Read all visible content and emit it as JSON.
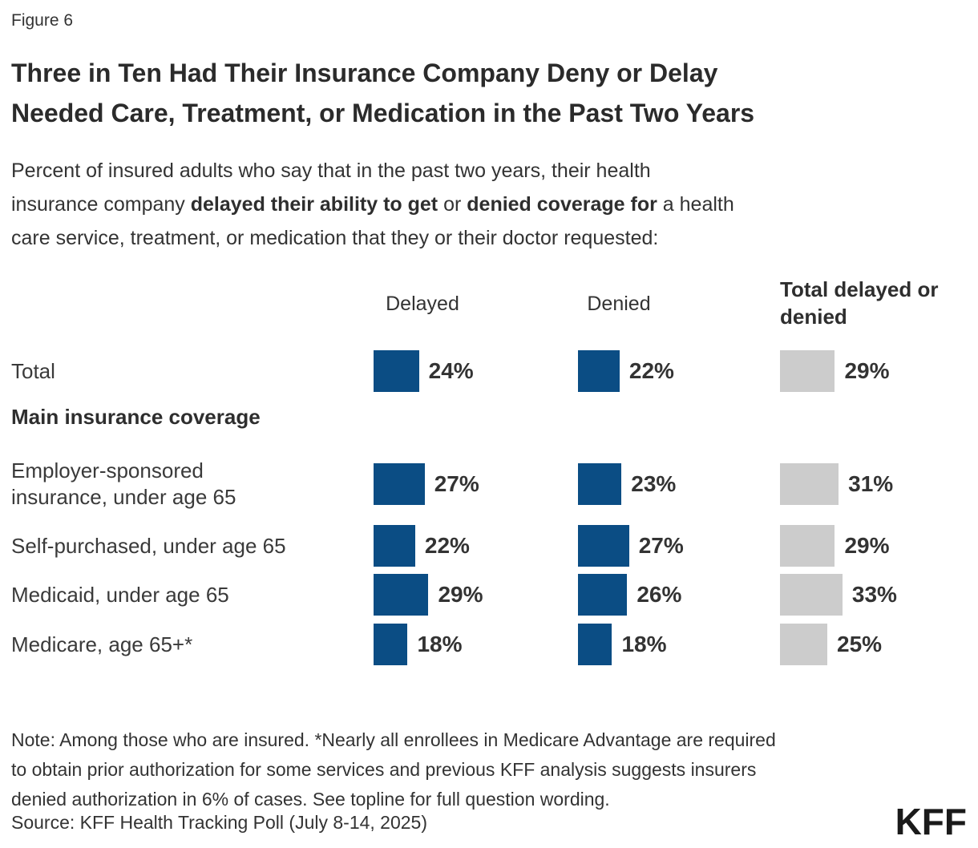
{
  "figure_label": "Figure 6",
  "title": {
    "line1": "Three in Ten Had Their Insurance Company Deny or Delay",
    "line2": "Needed Care, Treatment, or Medication in the Past Two Years"
  },
  "subtitle": {
    "line1": "Percent of insured adults who say that in the past two years, their health",
    "line2_pre": "insurance company ",
    "line2_bold1": "delayed their ability to get",
    "line2_mid": " or ",
    "line2_bold2": "denied coverage for",
    "line2_post": " a health",
    "line3": "care service, treatment, or medication that they or their doctor requested:"
  },
  "columns": {
    "delayed": "Delayed",
    "denied": "Denied",
    "total": "Total delayed or denied"
  },
  "group_heading": "Main insurance coverage",
  "colors": {
    "bar_blue": "#0B4D84",
    "bar_gray": "#CCCCCC",
    "text": "#333333"
  },
  "chart_data": {
    "type": "bar",
    "orientation": "horizontal",
    "unit": "%",
    "title": "Three in Ten Had Their Insurance Company Deny or Delay Needed Care, Treatment, or Medication in the Past Two Years",
    "categories": [
      "Total",
      "Employer-sponsored insurance, under age 65",
      "Self-purchased, under age 65",
      "Medicaid, under age 65",
      "Medicare, age 65+*"
    ],
    "series": [
      {
        "name": "Delayed",
        "values": [
          24,
          27,
          22,
          29,
          18
        ],
        "color": "#0B4D84"
      },
      {
        "name": "Denied",
        "values": [
          22,
          23,
          27,
          26,
          18
        ],
        "color": "#0B4D84"
      },
      {
        "name": "Total delayed or denied",
        "values": [
          29,
          31,
          29,
          33,
          25
        ],
        "color": "#CCCCCC"
      }
    ],
    "rows": [
      {
        "label": "Total",
        "delayed": "24%",
        "denied": "22%",
        "total": "29%"
      },
      {
        "label": "Employer-sponsored",
        "label2": "insurance, under age 65",
        "delayed": "27%",
        "denied": "23%",
        "total": "31%"
      },
      {
        "label": "Self-purchased, under age 65",
        "delayed": "22%",
        "denied": "27%",
        "total": "29%"
      },
      {
        "label": "Medicaid, under age 65",
        "delayed": "29%",
        "denied": "26%",
        "total": "33%"
      },
      {
        "label": "Medicare, age 65+*",
        "delayed": "18%",
        "denied": "18%",
        "total": "25%"
      }
    ]
  },
  "note": {
    "line1": "Note: Among those who are insured. *Nearly all enrollees in Medicare Advantage are required",
    "line2": "to obtain prior authorization for some services and previous KFF analysis suggests insurers",
    "line3": "denied authorization in 6% of cases. See topline for full question wording."
  },
  "source": "Source: KFF Health Tracking Poll (July 8-14, 2025)",
  "logo": "KFF"
}
